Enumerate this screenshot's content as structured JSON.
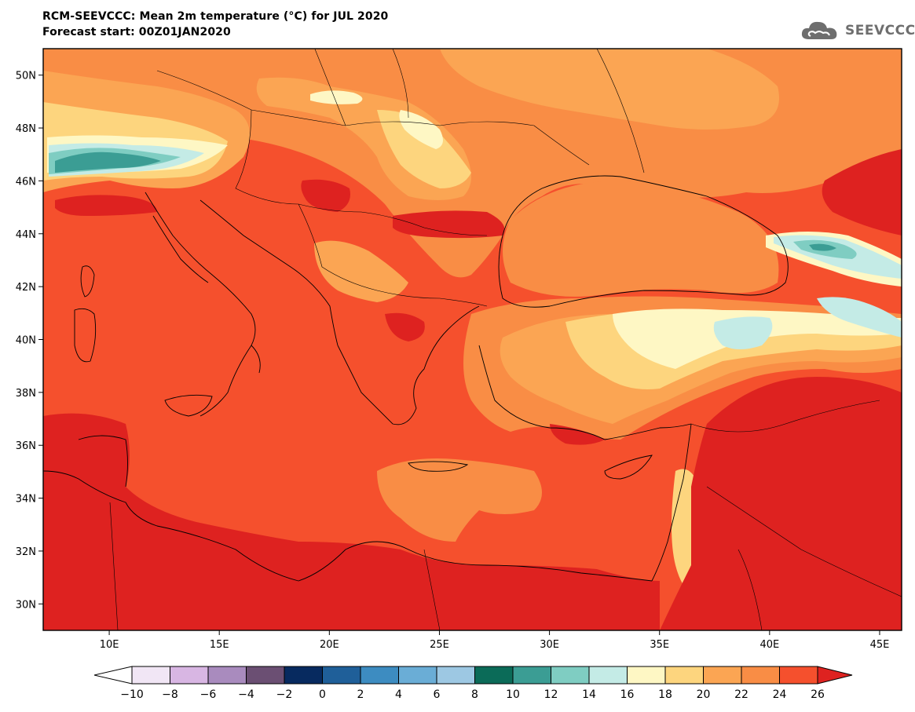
{
  "header": {
    "title": "RCM-SEEVCCC: Mean 2m temperature (°C) for JUL 2020",
    "subtitle": "Forecast start: 00Z01JAN2020",
    "logo_text": "SEEVCCC",
    "logo_icon": "cloud-icon"
  },
  "map": {
    "lon_range": [
      7,
      46
    ],
    "lat_range": [
      29,
      51
    ],
    "lat_ticks": [
      {
        "value": 50,
        "label": "50N"
      },
      {
        "value": 48,
        "label": "48N"
      },
      {
        "value": 46,
        "label": "46N"
      },
      {
        "value": 44,
        "label": "44N"
      },
      {
        "value": 42,
        "label": "42N"
      },
      {
        "value": 40,
        "label": "40N"
      },
      {
        "value": 38,
        "label": "38N"
      },
      {
        "value": 36,
        "label": "36N"
      },
      {
        "value": 34,
        "label": "34N"
      },
      {
        "value": 32,
        "label": "32N"
      },
      {
        "value": 30,
        "label": "30N"
      }
    ],
    "lon_ticks": [
      {
        "value": 10,
        "label": "10E"
      },
      {
        "value": 15,
        "label": "15E"
      },
      {
        "value": 20,
        "label": "20E"
      },
      {
        "value": 25,
        "label": "25E"
      },
      {
        "value": 30,
        "label": "30E"
      },
      {
        "value": 35,
        "label": "35E"
      },
      {
        "value": 40,
        "label": "40E"
      },
      {
        "value": 45,
        "label": "45E"
      }
    ],
    "colors": {
      "c24_26": "#f5502d",
      "c26plus": "#de2220",
      "c22_24": "#f98d45",
      "c20_22": "#fba553",
      "c18_20": "#fdd57e",
      "c16_18": "#fef7c4",
      "c14_16": "#c4ebe6",
      "c12_14": "#7fcdc2",
      "c10_12": "#3b9d94",
      "c8_10": "#0b6b58"
    }
  },
  "colorbar": {
    "levels": [
      "−10",
      "−8",
      "−6",
      "−4",
      "−2",
      "0",
      "2",
      "4",
      "6",
      "8",
      "10",
      "12",
      "14",
      "16",
      "18",
      "20",
      "22",
      "24",
      "26"
    ],
    "low_color": "#ffffff",
    "high_color": "#de2220",
    "colors": [
      "#f1e6f5",
      "#d8b6e3",
      "#a98bbe",
      "#6b4f73",
      "#072a5f",
      "#1f5f99",
      "#3d8cc1",
      "#6aadd6",
      "#9dc8e3",
      "#0b6b58",
      "#3b9d94",
      "#7fcdc2",
      "#c4ebe6",
      "#fef7c4",
      "#fdd57e",
      "#fba553",
      "#f98d45",
      "#f5502d"
    ]
  }
}
